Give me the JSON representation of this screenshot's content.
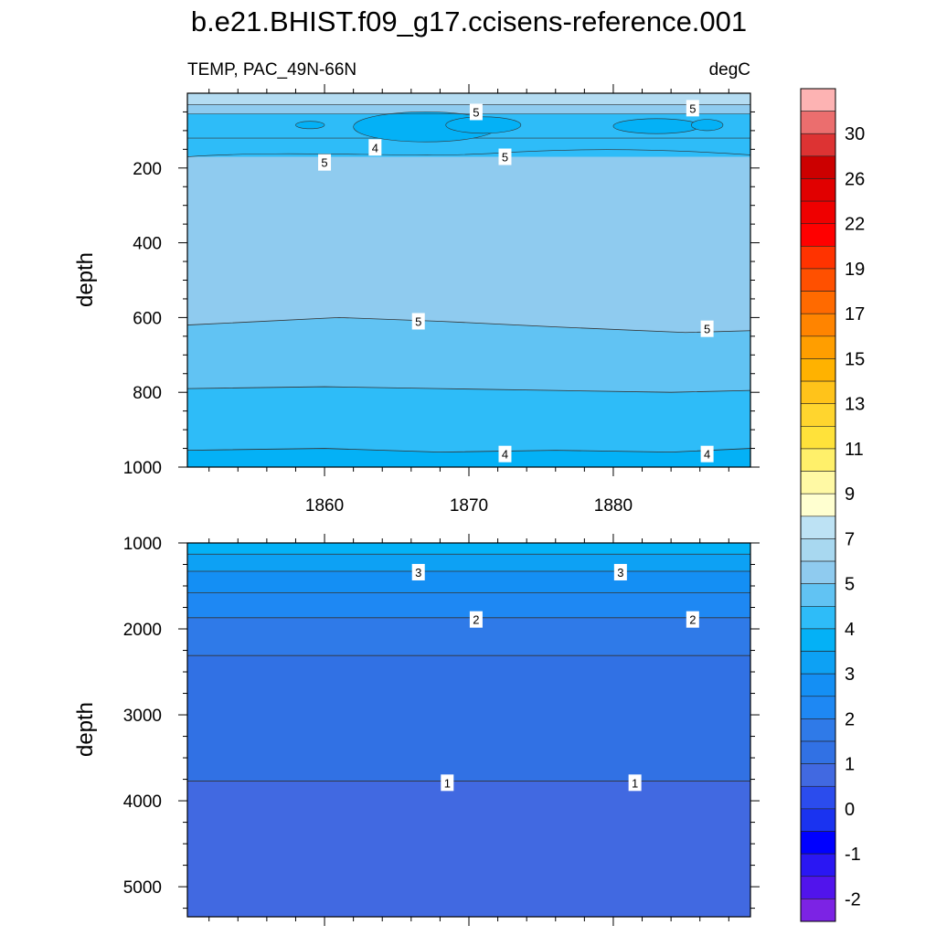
{
  "title": "b.e21.BHIST.f09_g17.ccisens-reference.001",
  "chart_data": [
    {
      "type": "heatmap",
      "variable_label": "TEMP, PAC_49N-66N",
      "units_label": "degC",
      "ylabel": "depth",
      "xlabel": "",
      "xlim": [
        1850.5,
        1889.5
      ],
      "ylim": [
        0,
        1000
      ],
      "y_inverted": true,
      "x_ticks": [
        1860,
        1870,
        1880
      ],
      "y_ticks": [
        200,
        400,
        600,
        800,
        1000
      ],
      "fill_bands": [
        {
          "depth_top": 0,
          "depth_bottom": 30,
          "color": "#b4dcf2",
          "range": "6-7"
        },
        {
          "depth_top": 30,
          "depth_bottom": 55,
          "color": "#8fcbef",
          "range": "5-6"
        },
        {
          "depth_top": 55,
          "depth_bottom": 170,
          "color": "#2ebcf8",
          "range": "4-4.5"
        }
      ],
      "contours": [
        {
          "value": 5,
          "depth": [
            620,
            600,
            610,
            625,
            640,
            635
          ],
          "x": [
            1850.5,
            1861,
            1868,
            1876,
            1885,
            1889.5
          ]
        },
        {
          "value": 4.5,
          "depth": [
            790,
            785,
            790,
            795,
            800,
            795
          ],
          "x": [
            1850.5,
            1860,
            1868,
            1876,
            1884,
            1889.5
          ]
        },
        {
          "value": 4,
          "depth": [
            955,
            950,
            960,
            955,
            960,
            950
          ],
          "x": [
            1850.5,
            1860,
            1868,
            1876,
            1884,
            1889.5
          ]
        }
      ],
      "contour_labels": [
        {
          "text": "5",
          "x": 1870.5,
          "depth": 50
        },
        {
          "text": "5",
          "x": 1885.5,
          "depth": 40
        },
        {
          "text": "4",
          "x": 1863.5,
          "depth": 145
        },
        {
          "text": "5",
          "x": 1860,
          "depth": 185
        },
        {
          "text": "5",
          "x": 1872.5,
          "depth": 170
        },
        {
          "text": "5",
          "x": 1866.5,
          "depth": 610
        },
        {
          "text": "5",
          "x": 1886.5,
          "depth": 630
        },
        {
          "text": "4",
          "x": 1872.5,
          "depth": 965
        },
        {
          "text": "4",
          "x": 1886.5,
          "depth": 965
        }
      ]
    },
    {
      "type": "heatmap",
      "ylabel": "depth",
      "xlabel": "",
      "xlim": [
        1850.5,
        1889.5
      ],
      "ylim": [
        1000,
        5350
      ],
      "y_inverted": true,
      "x_ticks": [
        1860,
        1870,
        1880
      ],
      "y_ticks": [
        1000,
        2000,
        3000,
        4000,
        5000
      ],
      "contours": [
        {
          "value": 3.5,
          "depth": 1130
        },
        {
          "value": 3,
          "depth": 1330
        },
        {
          "value": 2.5,
          "depth": 1580
        },
        {
          "value": 2,
          "depth": 1870
        },
        {
          "value": 1.5,
          "depth": 2310
        },
        {
          "value": 1,
          "depth": 3770
        }
      ],
      "fill_layers": [
        {
          "depth_top": 1000,
          "depth_bottom": 1130,
          "color": "#04b1f6"
        },
        {
          "depth_top": 1130,
          "depth_bottom": 1330,
          "color": "#0da1f4"
        },
        {
          "depth_top": 1330,
          "depth_bottom": 1580,
          "color": "#148ff4"
        },
        {
          "depth_top": 1580,
          "depth_bottom": 1870,
          "color": "#1e88f3"
        },
        {
          "depth_top": 1870,
          "depth_bottom": 2310,
          "color": "#2f7ae8"
        },
        {
          "depth_top": 2310,
          "depth_bottom": 3770,
          "color": "#3171e4"
        },
        {
          "depth_top": 3770,
          "depth_bottom": 5350,
          "color": "#4169e1"
        }
      ],
      "contour_labels": [
        {
          "text": "3",
          "x": 1866.5,
          "depth": 1340
        },
        {
          "text": "3",
          "x": 1880.5,
          "depth": 1340
        },
        {
          "text": "2",
          "x": 1870.5,
          "depth": 1890
        },
        {
          "text": "2",
          "x": 1885.5,
          "depth": 1890
        },
        {
          "text": "1",
          "x": 1868.5,
          "depth": 3790
        },
        {
          "text": "1",
          "x": 1881.5,
          "depth": 3790
        }
      ]
    }
  ],
  "colorbar": {
    "labels": [
      "30",
      "26",
      "22",
      "19",
      "17",
      "15",
      "13",
      "11",
      "9",
      "7",
      "5",
      "4",
      "3",
      "2",
      "1",
      "0",
      "-1",
      "-2"
    ],
    "colors": [
      "#fdb3b3",
      "#eb6e6e",
      "#dd3333",
      "#cc0000",
      "#e10000",
      "#ef0000",
      "#ff0000",
      "#ff3300",
      "#ff5000",
      "#ff6a00",
      "#ff8400",
      "#ff9e00",
      "#ffb200",
      "#ffc31a",
      "#ffd52e",
      "#ffe23a",
      "#fff06a",
      "#fff9a4",
      "#ffffd0",
      "#bde2f4",
      "#a8d8f0",
      "#8fcbef",
      "#61c3f3",
      "#2ebcf8",
      "#04b1f6",
      "#0da1f4",
      "#148ff4",
      "#1e88f3",
      "#2f7ae8",
      "#3171e4",
      "#4169e1",
      "#2b4ced",
      "#1a33f0",
      "#0000ff",
      "#2a17f3",
      "#5114ec",
      "#7c23e4"
    ]
  }
}
